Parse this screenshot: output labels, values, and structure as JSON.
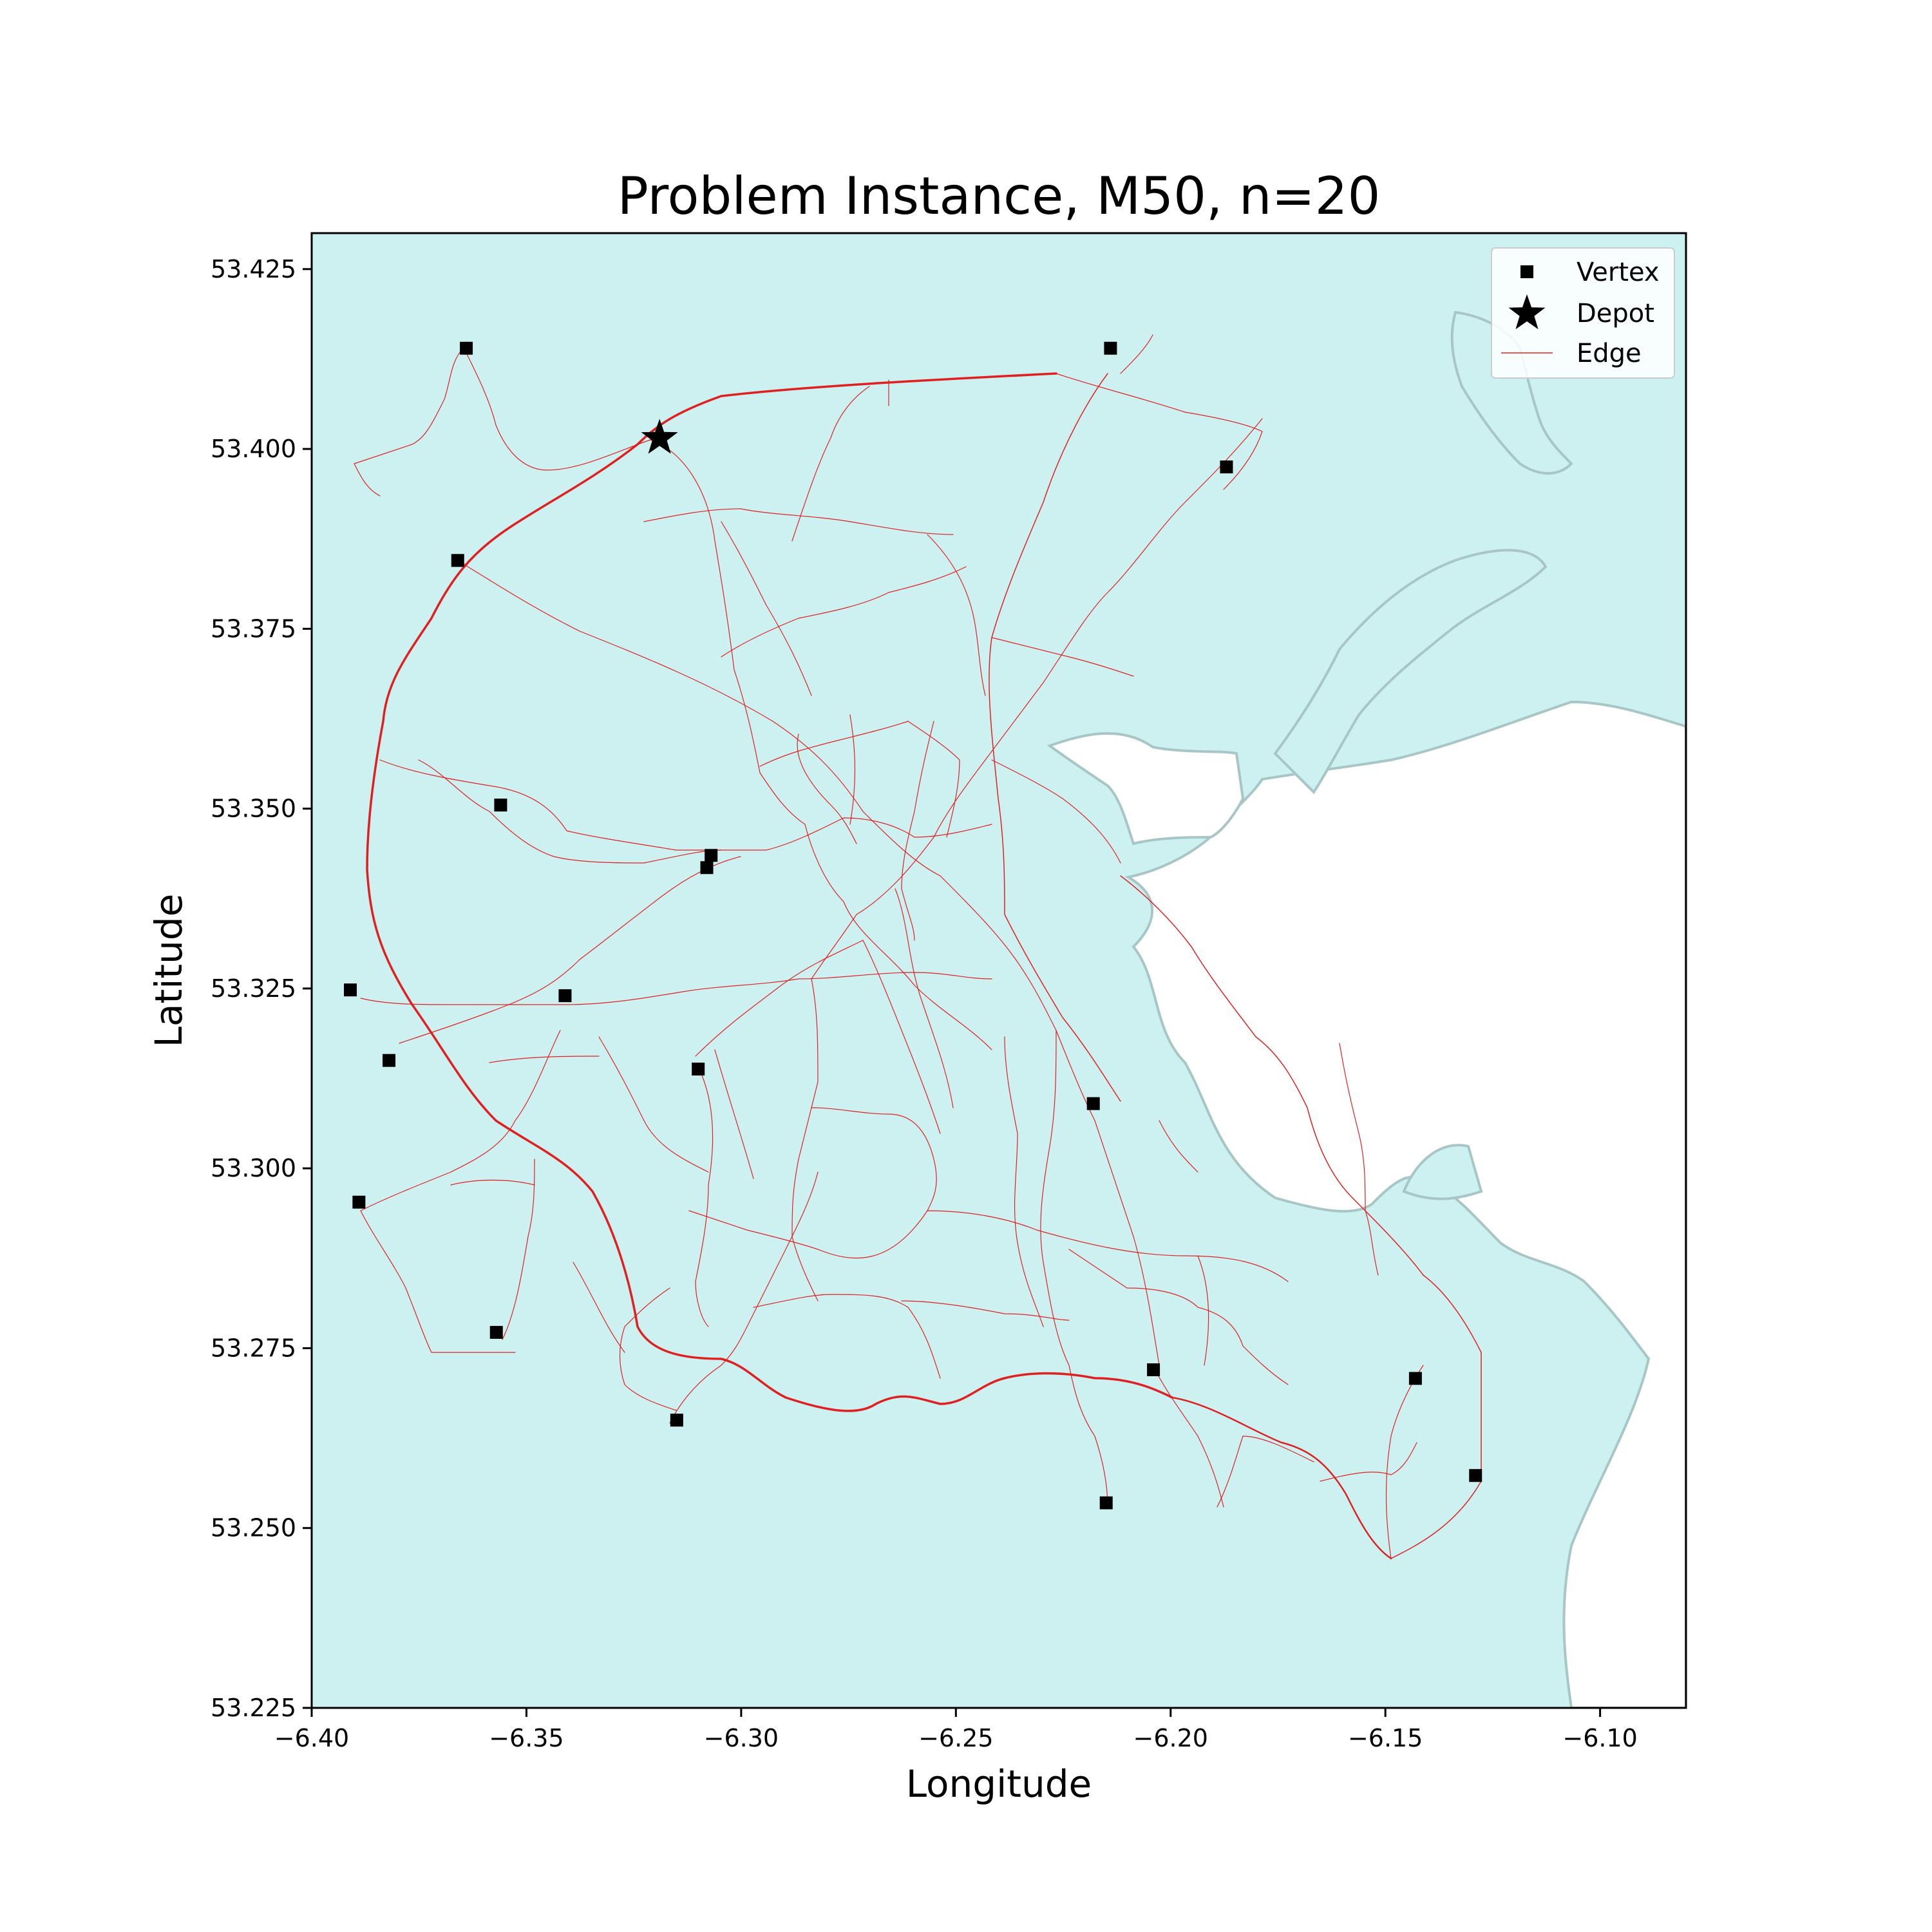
{
  "chart_data": {
    "type": "scatter",
    "title": "Problem Instance, M50, n=20",
    "xlabel": "Longitude",
    "ylabel": "Latitude",
    "xlim": [
      -6.4,
      -6.08
    ],
    "ylim": [
      53.225,
      53.43
    ],
    "x_ticks": [
      -6.4,
      -6.35,
      -6.3,
      -6.25,
      -6.2,
      -6.15,
      -6.1
    ],
    "x_tick_labels": [
      "−6.40",
      "−6.35",
      "−6.30",
      "−6.25",
      "−6.20",
      "−6.15",
      "−6.10"
    ],
    "y_ticks": [
      53.225,
      53.25,
      53.275,
      53.3,
      53.325,
      53.35,
      53.375,
      53.4,
      53.425
    ],
    "y_tick_labels": [
      "53.225",
      "53.250",
      "53.275",
      "53.300",
      "53.325",
      "53.350",
      "53.375",
      "53.400",
      "53.425"
    ],
    "grid": false,
    "legend_position": "top-right",
    "legend": [
      {
        "label": "Vertex",
        "marker": "square"
      },
      {
        "label": "Depot",
        "marker": "star"
      },
      {
        "label": "Edge",
        "marker": "line"
      }
    ],
    "colors": {
      "land": "#cdf1f1",
      "coast": "#a9c6c6",
      "edge": "#e02020",
      "marker": "#000000"
    },
    "depot": {
      "x": -6.319,
      "y": 53.4015
    },
    "vertices": [
      {
        "x": -6.364,
        "y": 53.414
      },
      {
        "x": -6.214,
        "y": 53.414
      },
      {
        "x": -6.187,
        "y": 53.3975
      },
      {
        "x": -6.366,
        "y": 53.3845
      },
      {
        "x": -6.356,
        "y": 53.3505
      },
      {
        "x": -6.307,
        "y": 53.3435
      },
      {
        "x": -6.308,
        "y": 53.3418
      },
      {
        "x": -6.391,
        "y": 53.3248
      },
      {
        "x": -6.341,
        "y": 53.324
      },
      {
        "x": -6.382,
        "y": 53.315
      },
      {
        "x": -6.31,
        "y": 53.3138
      },
      {
        "x": -6.218,
        "y": 53.309
      },
      {
        "x": -6.389,
        "y": 53.2953
      },
      {
        "x": -6.357,
        "y": 53.2772
      },
      {
        "x": -6.204,
        "y": 53.272
      },
      {
        "x": -6.143,
        "y": 53.2708
      },
      {
        "x": -6.315,
        "y": 53.265
      },
      {
        "x": -6.129,
        "y": 53.2573
      },
      {
        "x": -6.215,
        "y": 53.2535
      }
    ]
  }
}
